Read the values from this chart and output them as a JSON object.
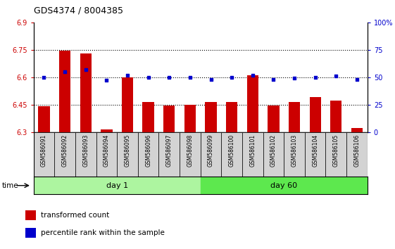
{
  "title": "GDS4374 / 8004385",
  "samples": [
    "GSM586091",
    "GSM586092",
    "GSM586093",
    "GSM586094",
    "GSM586095",
    "GSM586096",
    "GSM586097",
    "GSM586098",
    "GSM586099",
    "GSM586100",
    "GSM586101",
    "GSM586102",
    "GSM586103",
    "GSM586104",
    "GSM586105",
    "GSM586106"
  ],
  "bar_values": [
    6.44,
    6.745,
    6.73,
    6.315,
    6.6,
    6.465,
    6.445,
    6.45,
    6.465,
    6.465,
    6.61,
    6.445,
    6.465,
    6.49,
    6.47,
    6.32
  ],
  "dot_values": [
    50,
    55,
    57,
    47,
    52,
    50,
    50,
    50,
    48,
    50,
    52,
    48,
    49,
    50,
    51,
    48
  ],
  "ylim_left": [
    6.3,
    6.9
  ],
  "ylim_right": [
    0,
    100
  ],
  "yticks_left": [
    6.3,
    6.45,
    6.6,
    6.75,
    6.9
  ],
  "yticks_right": [
    0,
    25,
    50,
    75,
    100
  ],
  "ytick_labels_left": [
    "6.3",
    "6.45",
    "6.6",
    "6.75",
    "6.9"
  ],
  "ytick_labels_right": [
    "0",
    "25",
    "50",
    "75",
    "100%"
  ],
  "hlines": [
    6.45,
    6.6,
    6.75
  ],
  "bar_color": "#CC0000",
  "dot_color": "#0000CC",
  "bar_bottom": 6.3,
  "day1_count": 8,
  "day60_count": 8,
  "day1_label": "day 1",
  "day60_label": "day 60",
  "time_label": "time",
  "legend_bar_label": "transformed count",
  "legend_dot_label": "percentile rank within the sample",
  "xticklabel_bg": "#d3d3d3",
  "day1_color": "#adf5a0",
  "day60_color": "#5de84e",
  "dotted_line_color": "#000000",
  "right_axis_color": "#0000CC",
  "left_axis_color": "#CC0000",
  "title_fontsize": 9
}
